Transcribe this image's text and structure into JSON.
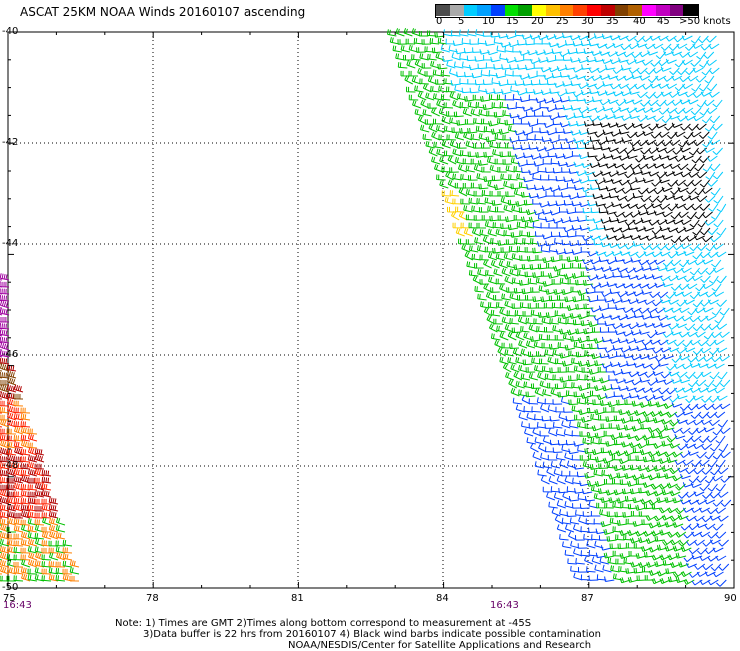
{
  "title": "ASCAT 25KM NOAA Winds 20160107 ascending",
  "legend": {
    "colors": [
      "#4d4d4d",
      "#aaaaaa",
      "#00ccff",
      "#00a0ff",
      "#0040ff",
      "#00e000",
      "#00a000",
      "#ffff00",
      "#ffc000",
      "#ff8000",
      "#ff4000",
      "#ff0000",
      "#c00000",
      "#804000",
      "#b06000",
      "#ff00ff",
      "#c000c0",
      "#800080",
      "#000000"
    ],
    "labels": [
      "0",
      "5",
      "10",
      "15",
      "20",
      "25",
      "30",
      "35",
      "40",
      "45",
      ">50 knots"
    ]
  },
  "map": {
    "lat_labels": [
      "-40",
      "-42",
      "-44",
      "-46",
      "-48",
      "-50"
    ],
    "lon_labels": [
      "75",
      "78",
      "81",
      "84",
      "87",
      "90"
    ],
    "pass_times": [
      "16:43",
      "16:43"
    ]
  },
  "footer": {
    "line1": "Note: 1) Times are GMT 2)Times along bottom correspond to measurement at -45S",
    "line2": "3)Data buffer is 22 hrs from 20160107 4) Black wind barbs indicate possible contamination",
    "line3": "NOAA/NESDIS/Center for Satellite Applications and Research"
  }
}
